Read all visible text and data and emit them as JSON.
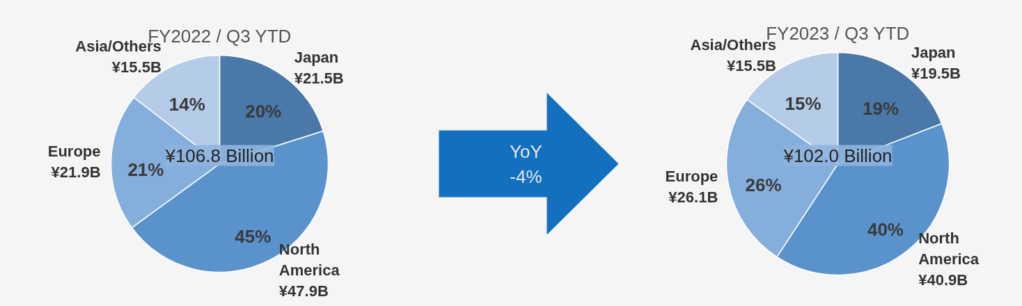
{
  "chart_data": [
    {
      "type": "pie",
      "title": "FY2022 / Q3 YTD",
      "categories": [
        "Japan",
        "North America",
        "Europe",
        "Asia/Others"
      ],
      "values": [
        21.5,
        47.9,
        21.9,
        15.5
      ],
      "colors": [
        "#4a78a8",
        "#5a93cc",
        "#84afdc",
        "#b5cce8"
      ],
      "value_labels": [
        "¥21.5B",
        "¥47.9B",
        "¥21.9B",
        "¥15.5B"
      ],
      "annotations": [
        {
          "text": "20%",
          "x": "Japan"
        },
        {
          "text": "45%",
          "x": "North America"
        },
        {
          "text": "21%",
          "x": "Europe"
        },
        {
          "text": "14%",
          "x": "Asia/Others"
        },
        "¥106.8 Billion"
      ]
    },
    {
      "type": "pie",
      "title": "FY2023 / Q3 YTD",
      "categories": [
        "Japan",
        "North America",
        "Europe",
        "Asia/Others"
      ],
      "values": [
        19.5,
        40.9,
        26.1,
        15.5
      ],
      "colors": [
        "#4a78a8",
        "#5a93cc",
        "#84afdc",
        "#b5cce8"
      ],
      "value_labels": [
        "¥19.5B",
        "¥40.9B",
        "¥26.1B",
        "¥15.5B"
      ],
      "annotations": [
        {
          "text": "19%",
          "x": "Japan"
        },
        {
          "text": "40%",
          "x": "North America"
        },
        {
          "text": "26%",
          "x": "Europe"
        },
        {
          "text": "15%",
          "x": "Asia/Others"
        },
        "¥102.0 Billion",
        "YoY\n-4%"
      ]
    }
  ]
}
